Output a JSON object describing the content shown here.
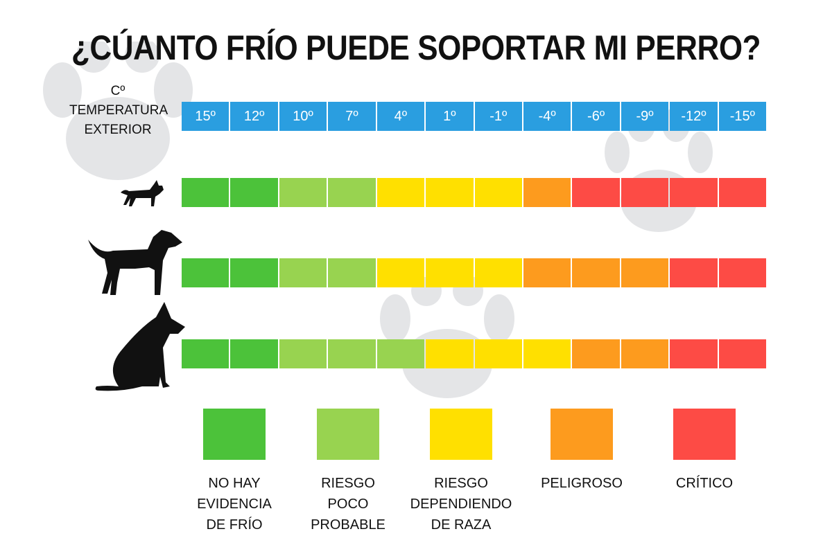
{
  "title": "¿CÚANTO FRÍO PUEDE SOPORTAR MI PERRO?",
  "temperature_header": {
    "unit": "Cº",
    "line1": "TEMPERATURA",
    "line2": "EXTERIOR"
  },
  "temperatures": [
    "15º",
    "12º",
    "10º",
    "7º",
    "4º",
    "1º",
    "-1º",
    "-4º",
    "-6º",
    "-9º",
    "-12º",
    "-15º"
  ],
  "colors": {
    "temp": "#2a9ee0",
    "G": "#4cc23a",
    "L": "#98d350",
    "Y": "#ffe000",
    "O": "#fd9b1e",
    "R": "#fd4b45"
  },
  "rows": [
    {
      "dog": "small-dog-icon",
      "levels": [
        "G",
        "G",
        "L",
        "L",
        "Y",
        "Y",
        "Y",
        "O",
        "R",
        "R",
        "R",
        "R"
      ]
    },
    {
      "dog": "medium-dog-icon",
      "levels": [
        "G",
        "G",
        "L",
        "L",
        "Y",
        "Y",
        "Y",
        "O",
        "O",
        "O",
        "R",
        "R"
      ]
    },
    {
      "dog": "large-dog-icon",
      "levels": [
        "G",
        "G",
        "L",
        "L",
        "L",
        "Y",
        "Y",
        "Y",
        "O",
        "O",
        "R",
        "R"
      ]
    }
  ],
  "legend": [
    {
      "key": "G",
      "lines": [
        "NO HAY",
        "EVIDENCIA",
        "DE FRÍO"
      ]
    },
    {
      "key": "L",
      "lines": [
        "RIESGO",
        "POCO",
        "PROBABLE"
      ]
    },
    {
      "key": "Y",
      "lines": [
        "RIESGO",
        "DEPENDIENDO",
        "DE RAZA"
      ]
    },
    {
      "key": "O",
      "lines": [
        "PELIGROSO"
      ]
    },
    {
      "key": "R",
      "lines": [
        "CRÍTICO"
      ]
    }
  ]
}
